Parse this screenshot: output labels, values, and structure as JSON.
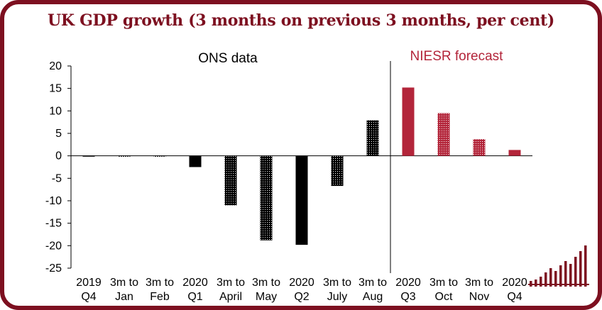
{
  "chart_data": {
    "type": "bar",
    "title": "UK GDP growth (3 months on previous 3 months, per cent)",
    "panel_labels": {
      "left": "ONS data",
      "right": "NIESR forecast"
    },
    "categories": [
      [
        "2019",
        "Q4"
      ],
      [
        "3m to",
        "Jan"
      ],
      [
        "3m to",
        "Feb"
      ],
      [
        "2020",
        "Q1"
      ],
      [
        "3m to",
        "April"
      ],
      [
        "3m to",
        "May"
      ],
      [
        "2020",
        "Q2"
      ],
      [
        "3m to",
        "July"
      ],
      [
        "3m to",
        "Aug"
      ],
      [
        "2020",
        "Q3"
      ],
      [
        "3m to",
        "Oct"
      ],
      [
        "3m to",
        "Nov"
      ],
      [
        "2020",
        "Q4"
      ]
    ],
    "series": [
      {
        "values": [
          0.0,
          -0.1,
          -0.1,
          -2.5,
          -11.0,
          -18.8,
          -19.8,
          -6.7,
          7.9,
          15.2,
          9.5,
          3.7,
          1.3
        ]
      }
    ],
    "styles": [
      "solid",
      "dotted",
      "dotted",
      "solid",
      "dotted",
      "dotted",
      "solid",
      "dotted",
      "dotted",
      "solid",
      "dotted",
      "dotted",
      "solid"
    ],
    "groups": [
      "ons",
      "ons",
      "ons",
      "ons",
      "ons",
      "ons",
      "ons",
      "ons",
      "ons",
      "forecast",
      "forecast",
      "forecast",
      "forecast"
    ],
    "ylim": [
      -25,
      20
    ],
    "yticks": [
      20,
      15,
      10,
      5,
      0,
      -5,
      -10,
      -15,
      -20,
      -25
    ],
    "colors": {
      "ons": "#000000",
      "forecast": "#b3253a",
      "frame": "#7d1020"
    },
    "grid": false,
    "legend": "none"
  }
}
